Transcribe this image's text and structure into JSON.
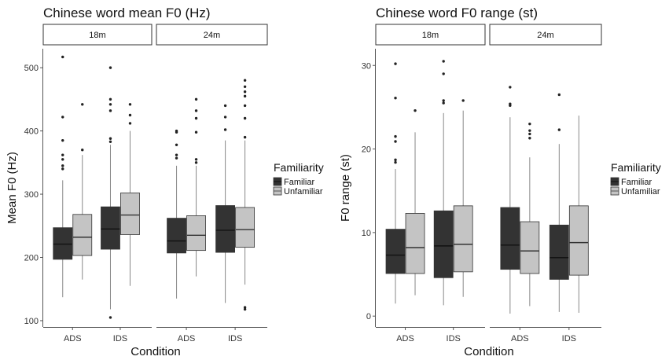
{
  "colors": {
    "familiar": "#333333",
    "unfamiliar": "#c4c4c4",
    "axis": "#555555",
    "whisker": "#888888"
  },
  "chart_data": [
    {
      "type": "boxplot",
      "title": "Chinese word mean F0 (Hz)",
      "xlabel": "Condition",
      "ylabel": "Mean F0 (Hz)",
      "ylim": [
        90,
        530
      ],
      "yticks": [
        100,
        200,
        300,
        400,
        500
      ],
      "grid": false,
      "legend": {
        "title": "Familiarity",
        "entries": [
          "Familiar",
          "Unfamiliar"
        ],
        "placement": "right"
      },
      "facets": [
        {
          "label": "18m",
          "categories": [
            "ADS",
            "IDS"
          ],
          "groups": [
            {
              "category": "ADS",
              "series": "Familiar",
              "min": 137,
              "q1": 197,
              "median": 221,
              "q3": 247,
              "max": 322,
              "outliers": [
                340,
                345,
                355,
                362,
                385,
                422,
                517
              ]
            },
            {
              "category": "ADS",
              "series": "Unfamiliar",
              "min": 165,
              "q1": 203,
              "median": 232,
              "q3": 268,
              "max": 362,
              "outliers": [
                370,
                442
              ]
            },
            {
              "category": "IDS",
              "series": "Familiar",
              "min": 118,
              "q1": 213,
              "median": 245,
              "q3": 280,
              "max": 378,
              "outliers": [
                105,
                383,
                388,
                432,
                442,
                450,
                500
              ]
            },
            {
              "category": "IDS",
              "series": "Unfamiliar",
              "min": 155,
              "q1": 236,
              "median": 267,
              "q3": 302,
              "max": 400,
              "outliers": [
                412,
                425,
                442
              ]
            }
          ]
        },
        {
          "label": "24m",
          "categories": [
            "ADS",
            "IDS"
          ],
          "groups": [
            {
              "category": "ADS",
              "series": "Familiar",
              "min": 135,
              "q1": 207,
              "median": 226,
              "q3": 262,
              "max": 345,
              "outliers": [
                357,
                362,
                378,
                398,
                400
              ]
            },
            {
              "category": "ADS",
              "series": "Unfamiliar",
              "min": 170,
              "q1": 211,
              "median": 235,
              "q3": 266,
              "max": 345,
              "outliers": [
                350,
                355,
                398,
                420,
                432,
                450
              ]
            },
            {
              "category": "IDS",
              "series": "Familiar",
              "min": 128,
              "q1": 208,
              "median": 243,
              "q3": 282,
              "max": 385,
              "outliers": [
                402,
                422,
                440
              ]
            },
            {
              "category": "IDS",
              "series": "Unfamiliar",
              "min": 157,
              "q1": 216,
              "median": 244,
              "q3": 279,
              "max": 385,
              "outliers": [
                118,
                121,
                390,
                420,
                440,
                455,
                462,
                470,
                480
              ]
            }
          ]
        }
      ]
    },
    {
      "type": "boxplot",
      "title": "Chinese word F0 range (st)",
      "xlabel": "Condition",
      "ylabel": "F0 range (st)",
      "ylim": [
        -1.3,
        32
      ],
      "yticks": [
        0,
        10,
        20,
        30
      ],
      "grid": false,
      "legend": {
        "title": "Familiarity",
        "entries": [
          "Familiar",
          "Unfamiliar"
        ],
        "placement": "right"
      },
      "facets": [
        {
          "label": "18m",
          "categories": [
            "ADS",
            "IDS"
          ],
          "groups": [
            {
              "category": "ADS",
              "series": "Familiar",
              "min": 1.5,
              "q1": 5.1,
              "median": 7.3,
              "q3": 10.4,
              "max": 17.6,
              "outliers": [
                18.4,
                18.7,
                20.9,
                21.5,
                26.1,
                30.2
              ]
            },
            {
              "category": "ADS",
              "series": "Unfamiliar",
              "min": 2.5,
              "q1": 5.1,
              "median": 8.2,
              "q3": 12.3,
              "max": 22.0,
              "outliers": [
                24.6
              ]
            },
            {
              "category": "IDS",
              "series": "Familiar",
              "min": 1.3,
              "q1": 4.6,
              "median": 8.4,
              "q3": 12.6,
              "max": 24.3,
              "outliers": [
                25.5,
                25.8,
                29.0,
                30.5
              ]
            },
            {
              "category": "IDS",
              "series": "Unfamiliar",
              "min": 2.3,
              "q1": 5.3,
              "median": 8.6,
              "q3": 13.2,
              "max": 24.6,
              "outliers": [
                25.8
              ]
            }
          ]
        },
        {
          "label": "24m",
          "categories": [
            "ADS",
            "IDS"
          ],
          "groups": [
            {
              "category": "ADS",
              "series": "Familiar",
              "min": 0.3,
              "q1": 5.6,
              "median": 8.5,
              "q3": 13.0,
              "max": 23.8,
              "outliers": [
                25.2,
                25.4,
                27.4
              ]
            },
            {
              "category": "ADS",
              "series": "Unfamiliar",
              "min": 1.2,
              "q1": 5.1,
              "median": 7.8,
              "q3": 11.3,
              "max": 19.0,
              "outliers": [
                21.3,
                21.8,
                22.2,
                23.0
              ]
            },
            {
              "category": "IDS",
              "series": "Familiar",
              "min": 0.5,
              "q1": 4.4,
              "median": 7.0,
              "q3": 10.9,
              "max": 20.6,
              "outliers": [
                22.3,
                26.5
              ]
            },
            {
              "category": "IDS",
              "series": "Unfamiliar",
              "min": 0.4,
              "q1": 4.9,
              "median": 8.8,
              "q3": 13.2,
              "max": 24.0,
              "outliers": []
            }
          ]
        }
      ]
    }
  ]
}
